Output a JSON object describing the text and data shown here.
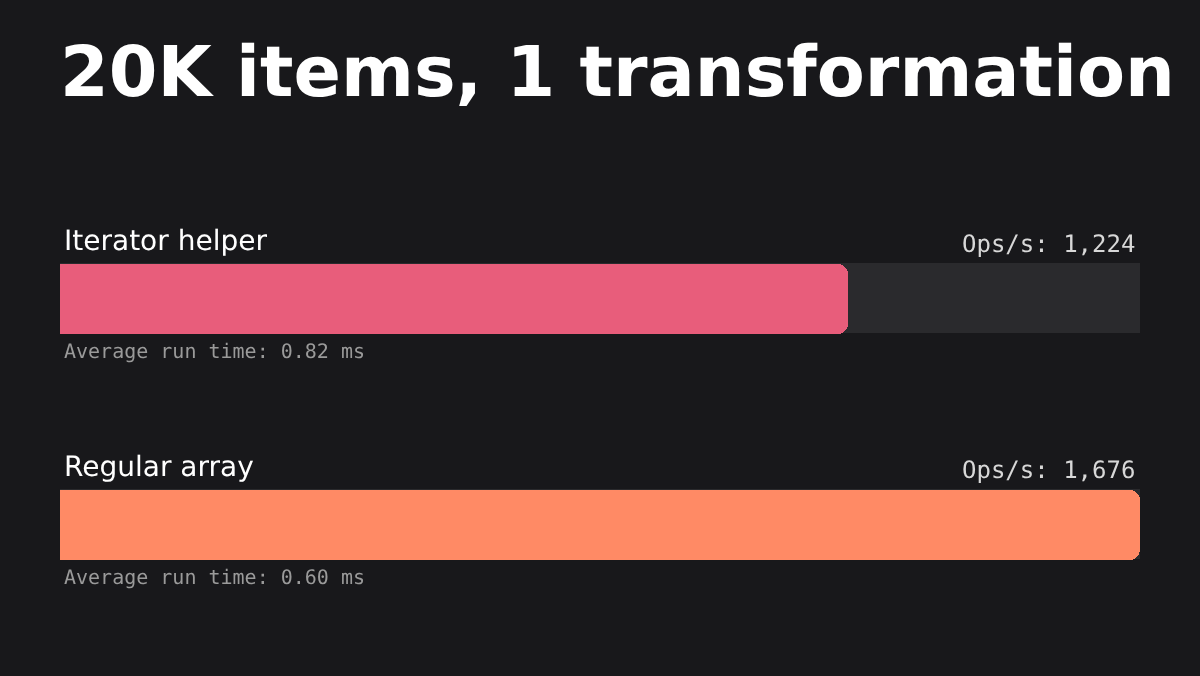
{
  "chart_data": {
    "type": "bar",
    "orientation": "horizontal",
    "title": "20K items, 1 transformation",
    "categories": [
      "Iterator helper",
      "Regular array"
    ],
    "values": [
      1224,
      1676
    ],
    "colors": [
      "#e85d7b",
      "#ff8a65"
    ],
    "value_labels": [
      "Ops/s: 1,224",
      "Ops/s: 1,676"
    ],
    "annotations": [
      "Average run time: 0.82 ms",
      "Average run time: 0.60 ms"
    ],
    "legend": false
  }
}
